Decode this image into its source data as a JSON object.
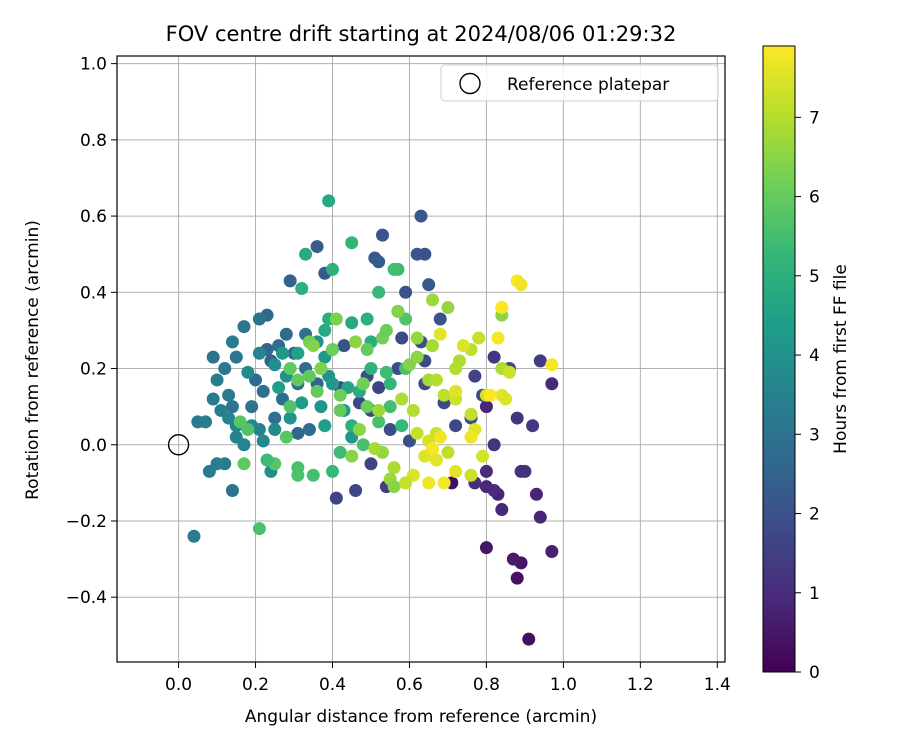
{
  "chart_data": {
    "type": "scatter",
    "title": "FOV centre drift starting at 2024/08/06 01:29:32",
    "xlabel": "Angular distance from reference (arcmin)",
    "ylabel": "Rotation from reference (arcmin)",
    "xlim": [
      -0.16,
      1.42
    ],
    "ylim": [
      -0.57,
      1.02
    ],
    "xticks": [
      0.0,
      0.2,
      0.4,
      0.6,
      0.8,
      1.0,
      1.2,
      1.4
    ],
    "xtick_labels": [
      "0.0",
      "0.2",
      "0.4",
      "0.6",
      "0.8",
      "1.0",
      "1.2",
      "1.4"
    ],
    "yticks": [
      -0.4,
      -0.2,
      0.0,
      0.2,
      0.4,
      0.6,
      0.8,
      1.0
    ],
    "ytick_labels": [
      "−0.4",
      "−0.2",
      "0.0",
      "0.2",
      "0.4",
      "0.6",
      "0.8",
      "1.0"
    ],
    "grid": true,
    "legend": {
      "placement": "top-right",
      "entries": [
        "Reference platepar"
      ]
    },
    "reference_point": {
      "x": 0.0,
      "y": 0.0,
      "label": "Reference platepar"
    },
    "colorbar": {
      "label": "Hours from first FF file",
      "range": [
        0,
        7.9
      ],
      "ticks": [
        0,
        1,
        2,
        3,
        4,
        5,
        6,
        7
      ],
      "tick_labels": [
        "0",
        "1",
        "2",
        "3",
        "4",
        "5",
        "6",
        "7"
      ],
      "colormap": "viridis",
      "colors": [
        "#440154",
        "#482878",
        "#3e4989",
        "#31688e",
        "#26828e",
        "#1f9e89",
        "#35b779",
        "#6ece58",
        "#b5de2b",
        "#fde725"
      ]
    },
    "series": [
      {
        "columns": [
          "x",
          "y",
          "hours"
        ],
        "points": [
          [
            0.91,
            -0.51,
            0.3
          ],
          [
            0.88,
            -0.35,
            0.4
          ],
          [
            0.89,
            -0.31,
            0.5
          ],
          [
            0.87,
            -0.3,
            0.6
          ],
          [
            0.8,
            -0.27,
            0.5
          ],
          [
            0.97,
            -0.28,
            0.7
          ],
          [
            0.94,
            -0.19,
            0.8
          ],
          [
            0.84,
            -0.17,
            0.9
          ],
          [
            0.83,
            -0.13,
            0.8
          ],
          [
            0.82,
            -0.12,
            1.0
          ],
          [
            0.8,
            -0.11,
            0.9
          ],
          [
            0.77,
            -0.1,
            1.1
          ],
          [
            0.71,
            -0.1,
            0.3
          ],
          [
            0.8,
            -0.07,
            1.0
          ],
          [
            0.89,
            -0.07,
            1.2
          ],
          [
            0.9,
            -0.07,
            1.1
          ],
          [
            0.82,
            0.0,
            1.2
          ],
          [
            0.93,
            -0.13,
            0.8
          ],
          [
            0.88,
            0.07,
            1.2
          ],
          [
            0.92,
            0.05,
            1.3
          ],
          [
            0.8,
            0.1,
            0.9
          ],
          [
            0.94,
            0.22,
            1.4
          ],
          [
            0.97,
            0.16,
            0.9
          ],
          [
            0.82,
            0.23,
            1.3
          ],
          [
            0.77,
            0.18,
            1.6
          ],
          [
            0.64,
            0.22,
            1.8
          ],
          [
            0.63,
            0.27,
            1.9
          ],
          [
            0.59,
            0.4,
            2.0
          ],
          [
            0.62,
            0.5,
            2.1
          ],
          [
            0.64,
            0.5,
            2.0
          ],
          [
            0.63,
            0.6,
            2.2
          ],
          [
            0.53,
            0.55,
            2.1
          ],
          [
            0.51,
            0.49,
            2.2
          ],
          [
            0.52,
            0.48,
            2.3
          ],
          [
            0.36,
            0.52,
            2.3
          ],
          [
            0.38,
            0.45,
            2.2
          ],
          [
            0.29,
            0.43,
            2.5
          ],
          [
            0.68,
            0.33,
            2.0
          ],
          [
            0.65,
            0.42,
            2.2
          ],
          [
            0.58,
            0.28,
            1.8
          ],
          [
            0.57,
            0.2,
            1.9
          ],
          [
            0.49,
            0.18,
            1.9
          ],
          [
            0.52,
            0.15,
            1.6
          ],
          [
            0.43,
            0.26,
            2.0
          ],
          [
            0.42,
            0.15,
            1.8
          ],
          [
            0.47,
            0.11,
            1.7
          ],
          [
            0.5,
            0.09,
            1.6
          ],
          [
            0.46,
            0.04,
            1.8
          ],
          [
            0.41,
            -0.14,
            1.6
          ],
          [
            0.46,
            -0.12,
            1.7
          ],
          [
            0.54,
            -0.11,
            1.5
          ],
          [
            0.5,
            -0.05,
            1.6
          ],
          [
            0.55,
            0.04,
            1.9
          ],
          [
            0.6,
            0.01,
            1.9
          ],
          [
            0.64,
            0.16,
            1.7
          ],
          [
            0.69,
            0.11,
            1.8
          ],
          [
            0.72,
            0.05,
            1.7
          ],
          [
            0.76,
            0.07,
            1.9
          ],
          [
            0.79,
            0.13,
            1.8
          ],
          [
            0.86,
            0.2,
            1.8
          ],
          [
            0.3,
            0.24,
            2.6
          ],
          [
            0.33,
            0.2,
            2.7
          ],
          [
            0.36,
            0.16,
            2.5
          ],
          [
            0.31,
            0.16,
            2.8
          ],
          [
            0.28,
            0.29,
            2.7
          ],
          [
            0.33,
            0.29,
            2.9
          ],
          [
            0.26,
            0.26,
            2.8
          ],
          [
            0.23,
            0.25,
            2.6
          ],
          [
            0.24,
            0.22,
            2.5
          ],
          [
            0.2,
            0.17,
            2.7
          ],
          [
            0.22,
            0.14,
            2.9
          ],
          [
            0.27,
            0.12,
            2.8
          ],
          [
            0.31,
            0.03,
            2.6
          ],
          [
            0.34,
            0.04,
            2.8
          ],
          [
            0.19,
            0.1,
            3.0
          ],
          [
            0.25,
            0.07,
            2.9
          ],
          [
            0.23,
            0.34,
            2.6
          ],
          [
            0.21,
            0.33,
            3.0
          ],
          [
            0.17,
            0.31,
            3.1
          ],
          [
            0.09,
            0.23,
            3.0
          ],
          [
            0.12,
            0.2,
            3.2
          ],
          [
            0.15,
            0.23,
            3.1
          ],
          [
            0.1,
            0.17,
            3.3
          ],
          [
            0.13,
            0.13,
            3.2
          ],
          [
            0.14,
            0.1,
            3.1
          ],
          [
            0.11,
            0.09,
            3.4
          ],
          [
            0.09,
            0.12,
            3.3
          ],
          [
            0.07,
            0.06,
            3.4
          ],
          [
            0.05,
            0.06,
            3.2
          ],
          [
            0.14,
            0.27,
            3.3
          ],
          [
            0.13,
            0.07,
            3.5
          ],
          [
            0.12,
            -0.05,
            3.3
          ],
          [
            0.1,
            -0.05,
            3.4
          ],
          [
            0.08,
            -0.07,
            3.3
          ],
          [
            0.14,
            -0.12,
            3.0
          ],
          [
            0.15,
            0.05,
            3.6
          ],
          [
            0.15,
            0.02,
            3.5
          ],
          [
            0.17,
            0.0,
            3.6
          ],
          [
            0.19,
            0.05,
            3.7
          ],
          [
            0.21,
            0.04,
            3.5
          ],
          [
            0.25,
            0.04,
            3.8
          ],
          [
            0.04,
            -0.24,
            3.3
          ],
          [
            0.24,
            -0.07,
            3.9
          ],
          [
            0.22,
            0.01,
            3.7
          ],
          [
            0.18,
            0.19,
            3.8
          ],
          [
            0.21,
            0.24,
            3.6
          ],
          [
            0.25,
            0.21,
            3.9
          ],
          [
            0.28,
            0.18,
            4.0
          ],
          [
            0.36,
            0.27,
            4.0
          ],
          [
            0.38,
            0.23,
            4.2
          ],
          [
            0.39,
            0.18,
            4.1
          ],
          [
            0.4,
            0.16,
            4.3
          ],
          [
            0.37,
            0.1,
            4.1
          ],
          [
            0.43,
            0.09,
            4.2
          ],
          [
            0.45,
            0.02,
            4.2
          ],
          [
            0.38,
            0.05,
            4.4
          ],
          [
            0.29,
            0.07,
            4.1
          ],
          [
            0.32,
            0.11,
            4.3
          ],
          [
            0.27,
            0.24,
            4.2
          ],
          [
            0.26,
            0.15,
            4.4
          ],
          [
            0.31,
            0.24,
            4.5
          ],
          [
            0.39,
            0.64,
            4.7
          ],
          [
            0.33,
            0.5,
            4.8
          ],
          [
            0.4,
            0.46,
            5.0
          ],
          [
            0.45,
            0.53,
            5.2
          ],
          [
            0.32,
            0.41,
            5.0
          ],
          [
            0.39,
            0.33,
            4.9
          ],
          [
            0.38,
            0.3,
            4.8
          ],
          [
            0.45,
            0.32,
            4.7
          ],
          [
            0.49,
            0.33,
            5.0
          ],
          [
            0.5,
            0.27,
            4.9
          ],
          [
            0.52,
            0.4,
            5.3
          ],
          [
            0.57,
            0.46,
            5.3
          ],
          [
            0.56,
            0.46,
            5.5
          ],
          [
            0.57,
            0.35,
            5.5
          ],
          [
            0.59,
            0.33,
            5.7
          ],
          [
            0.44,
            0.15,
            4.6
          ],
          [
            0.47,
            0.14,
            4.9
          ],
          [
            0.5,
            0.2,
            5.1
          ],
          [
            0.54,
            0.19,
            5.4
          ],
          [
            0.55,
            0.16,
            5.2
          ],
          [
            0.59,
            0.2,
            5.6
          ],
          [
            0.55,
            0.1,
            5.5
          ],
          [
            0.58,
            0.05,
            5.3
          ],
          [
            0.52,
            0.06,
            5.6
          ],
          [
            0.45,
            0.05,
            5.0
          ],
          [
            0.42,
            -0.02,
            5.4
          ],
          [
            0.48,
            0.0,
            5.6
          ],
          [
            0.4,
            -0.07,
            5.3
          ],
          [
            0.35,
            -0.08,
            5.5
          ],
          [
            0.31,
            -0.08,
            5.7
          ],
          [
            0.31,
            -0.06,
            5.6
          ],
          [
            0.25,
            -0.05,
            5.8
          ],
          [
            0.23,
            -0.04,
            5.4
          ],
          [
            0.21,
            -0.22,
            5.6
          ],
          [
            0.17,
            -0.05,
            5.9
          ],
          [
            0.16,
            0.06,
            5.8
          ],
          [
            0.18,
            0.04,
            5.7
          ],
          [
            0.28,
            0.02,
            5.8
          ],
          [
            0.29,
            0.1,
            5.7
          ],
          [
            0.29,
            0.2,
            5.9
          ],
          [
            0.31,
            0.17,
            6.0
          ],
          [
            0.34,
            0.18,
            5.9
          ],
          [
            0.36,
            0.14,
            6.0
          ],
          [
            0.42,
            0.13,
            6.1
          ],
          [
            0.42,
            0.09,
            6.0
          ],
          [
            0.48,
            0.16,
            6.2
          ],
          [
            0.49,
            0.1,
            6.1
          ],
          [
            0.53,
            0.28,
            6.2
          ],
          [
            0.54,
            0.3,
            6.1
          ],
          [
            0.49,
            0.25,
            6.0
          ],
          [
            0.4,
            0.25,
            6.1
          ],
          [
            0.37,
            0.2,
            6.3
          ],
          [
            0.34,
            0.27,
            6.2
          ],
          [
            0.35,
            0.26,
            6.4
          ],
          [
            0.41,
            0.33,
            6.3
          ],
          [
            0.46,
            0.27,
            6.5
          ],
          [
            0.6,
            0.21,
            6.4
          ],
          [
            0.62,
            0.28,
            6.6
          ],
          [
            0.62,
            0.23,
            6.5
          ],
          [
            0.57,
            0.35,
            6.4
          ],
          [
            0.66,
            0.38,
            6.7
          ],
          [
            0.7,
            0.36,
            6.6
          ],
          [
            0.66,
            0.26,
            6.8
          ],
          [
            0.73,
            0.22,
            6.9
          ],
          [
            0.72,
            0.2,
            7.0
          ],
          [
            0.76,
            0.25,
            7.1
          ],
          [
            0.78,
            0.28,
            7.2
          ],
          [
            0.84,
            0.36,
            6.3
          ],
          [
            0.84,
            0.34,
            6.5
          ],
          [
            0.84,
            0.2,
            6.9
          ],
          [
            0.86,
            0.19,
            7.3
          ],
          [
            0.65,
            0.17,
            6.8
          ],
          [
            0.67,
            0.17,
            7.0
          ],
          [
            0.69,
            0.13,
            7.1
          ],
          [
            0.72,
            0.12,
            7.3
          ],
          [
            0.72,
            0.14,
            7.5
          ],
          [
            0.76,
            0.08,
            7.2
          ],
          [
            0.8,
            0.13,
            7.4
          ],
          [
            0.84,
            0.13,
            7.6
          ],
          [
            0.85,
            0.12,
            7.5
          ],
          [
            0.77,
            0.04,
            7.6
          ],
          [
            0.76,
            0.02,
            7.7
          ],
          [
            0.79,
            -0.03,
            7.4
          ],
          [
            0.76,
            -0.08,
            7.3
          ],
          [
            0.72,
            -0.07,
            7.6
          ],
          [
            0.69,
            -0.1,
            7.8
          ],
          [
            0.65,
            -0.1,
            7.7
          ],
          [
            0.61,
            -0.08,
            7.5
          ],
          [
            0.59,
            -0.1,
            7.2
          ],
          [
            0.56,
            -0.06,
            6.9
          ],
          [
            0.55,
            -0.09,
            6.7
          ],
          [
            0.56,
            -0.11,
            6.5
          ],
          [
            0.53,
            -0.02,
            6.6
          ],
          [
            0.51,
            -0.01,
            6.8
          ],
          [
            0.45,
            -0.03,
            6.4
          ],
          [
            0.47,
            0.04,
            6.5
          ],
          [
            0.52,
            0.09,
            6.7
          ],
          [
            0.58,
            0.12,
            6.9
          ],
          [
            0.61,
            0.09,
            7.0
          ],
          [
            0.62,
            0.03,
            7.2
          ],
          [
            0.65,
            0.01,
            7.4
          ],
          [
            0.67,
            0.03,
            7.3
          ],
          [
            0.7,
            -0.02,
            7.1
          ],
          [
            0.67,
            -0.04,
            7.6
          ],
          [
            0.64,
            -0.03,
            7.5
          ],
          [
            0.66,
            -0.01,
            7.8
          ],
          [
            0.68,
            0.02,
            7.7
          ],
          [
            0.88,
            0.43,
            7.8
          ],
          [
            0.89,
            0.42,
            7.7
          ],
          [
            0.84,
            0.36,
            7.9
          ],
          [
            0.83,
            0.28,
            7.8
          ],
          [
            0.68,
            0.29,
            7.6
          ],
          [
            0.74,
            0.26,
            7.5
          ],
          [
            0.97,
            0.21,
            7.8
          ],
          [
            0.81,
            0.13,
            7.9
          ]
        ]
      }
    ]
  }
}
